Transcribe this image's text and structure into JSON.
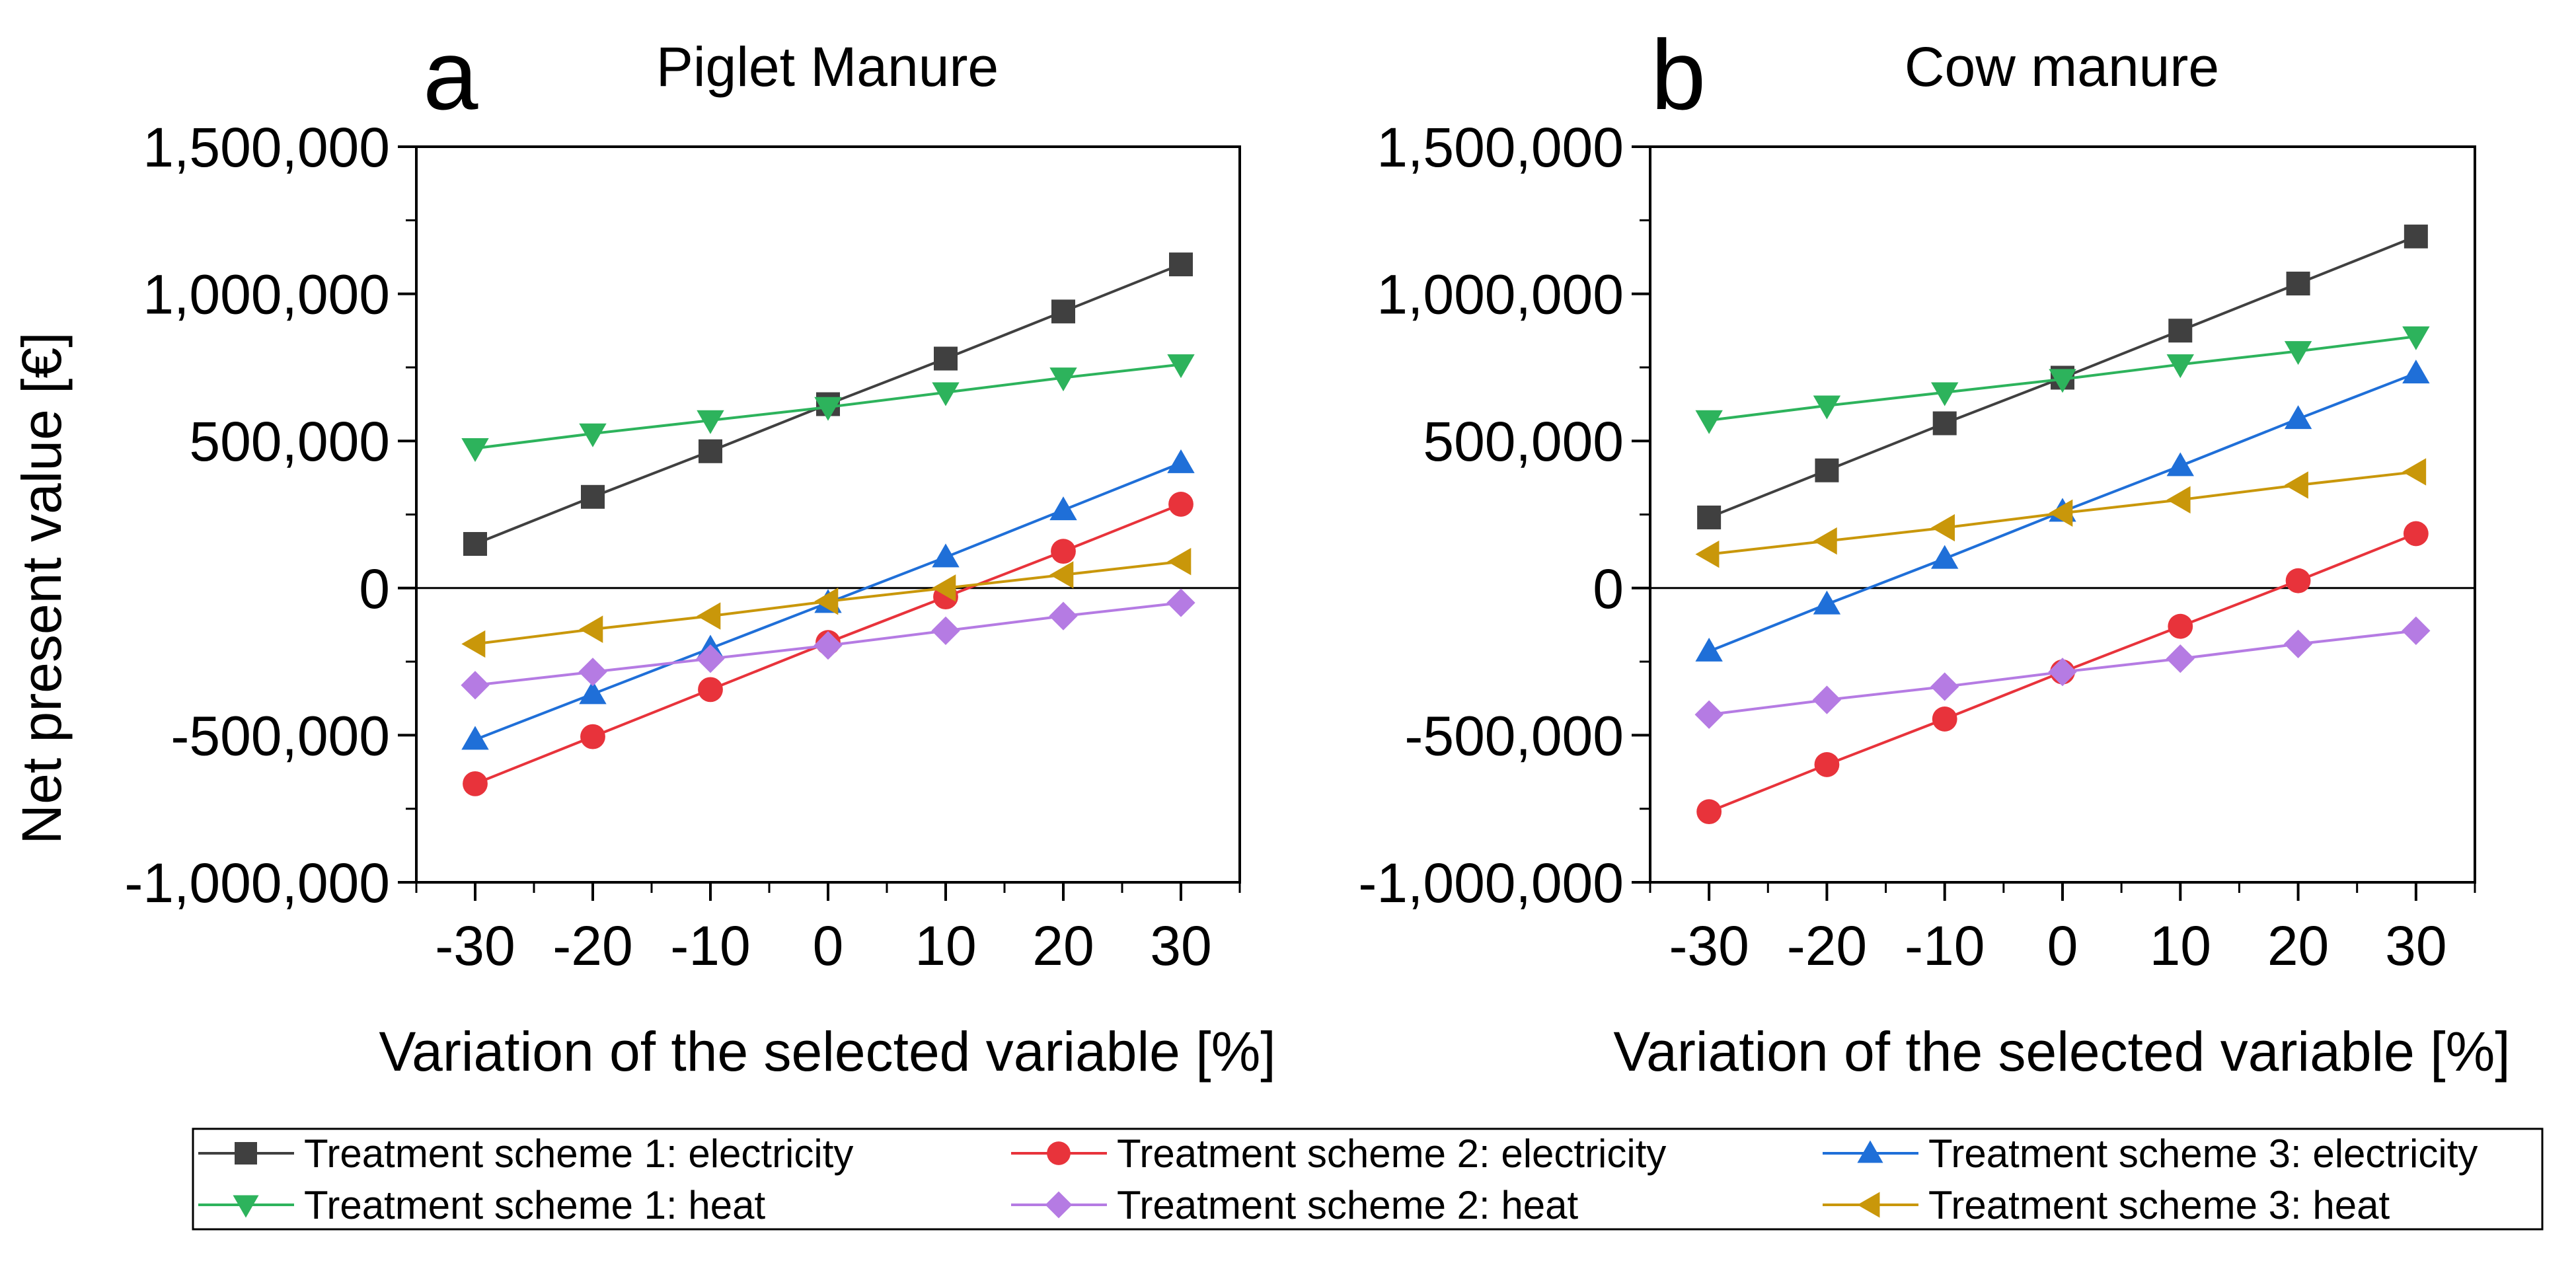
{
  "figure": {
    "ylabel": "Net present value [€]"
  },
  "legend": {
    "entries": [
      {
        "label": "Treatment scheme 1: electricity",
        "marker": "square-icon",
        "color": "#404040"
      },
      {
        "label": "Treatment scheme 2: electricity",
        "marker": "circle-icon",
        "color": "#e8333b"
      },
      {
        "label": "Treatment scheme 3: electricity",
        "marker": "triangle-up-icon",
        "color": "#1f6fd8"
      },
      {
        "label": "Treatment scheme 1: heat",
        "marker": "triangle-down-icon",
        "color": "#2db35c"
      },
      {
        "label": "Treatment scheme 2: heat",
        "marker": "diamond-icon",
        "color": "#b57be3"
      },
      {
        "label": "Treatment scheme 3: heat",
        "marker": "triangle-left-icon",
        "color": "#c9970a"
      }
    ]
  },
  "chart_data": [
    {
      "type": "line",
      "panel": "a",
      "title": "Piglet Manure",
      "xlabel": "Variation of the selected variable [%]",
      "ylabel": "Net present value [€]",
      "x": [
        -30,
        -20,
        -10,
        0,
        10,
        20,
        30
      ],
      "xlim": [
        -35,
        35
      ],
      "ylim": [
        -1000000,
        1500000
      ],
      "xticks": [
        -30,
        -20,
        -10,
        0,
        10,
        20,
        30
      ],
      "xtick_labels": [
        "-30",
        "-20",
        "-10",
        "0",
        "10",
        "20",
        "30"
      ],
      "yticks": [
        -1000000,
        -500000,
        0,
        500000,
        1000000,
        1500000
      ],
      "ytick_labels": [
        "-1,000,000",
        "-500,000",
        "0",
        "500,000",
        "1,000,000",
        "1,500,000"
      ],
      "zero_line": true,
      "series": [
        {
          "name": "Treatment scheme 1: electricity",
          "marker": "square",
          "color": "#404040",
          "values": [
            150000,
            310000,
            465000,
            625000,
            780000,
            940000,
            1100000
          ]
        },
        {
          "name": "Treatment scheme 2: electricity",
          "marker": "circle",
          "color": "#e8333b",
          "values": [
            -665000,
            -505000,
            -345000,
            -185000,
            -30000,
            125000,
            285000
          ]
        },
        {
          "name": "Treatment scheme 3: electricity",
          "marker": "triangle-up",
          "color": "#1f6fd8",
          "values": [
            -515000,
            -360000,
            -205000,
            -50000,
            105000,
            265000,
            425000
          ]
        },
        {
          "name": "Treatment scheme 1: heat",
          "marker": "triangle-down",
          "color": "#2db35c",
          "values": [
            475000,
            525000,
            570000,
            615000,
            665000,
            715000,
            760000
          ]
        },
        {
          "name": "Treatment scheme 2: heat",
          "marker": "diamond",
          "color": "#b57be3",
          "values": [
            -330000,
            -285000,
            -240000,
            -195000,
            -145000,
            -95000,
            -50000
          ]
        },
        {
          "name": "Treatment scheme 3: heat",
          "marker": "triangle-left",
          "color": "#c9970a",
          "values": [
            -190000,
            -140000,
            -95000,
            -45000,
            0,
            45000,
            90000
          ]
        }
      ]
    },
    {
      "type": "line",
      "panel": "b",
      "title": "Cow manure",
      "xlabel": "Variation of the selected variable [%]",
      "ylabel": "Net present value [€]",
      "x": [
        -30,
        -20,
        -10,
        0,
        10,
        20,
        30
      ],
      "xlim": [
        -35,
        35
      ],
      "ylim": [
        -1000000,
        1500000
      ],
      "xticks": [
        -30,
        -20,
        -10,
        0,
        10,
        20,
        30
      ],
      "xtick_labels": [
        "-30",
        "-20",
        "-10",
        "0",
        "10",
        "20",
        "30"
      ],
      "yticks": [
        -1000000,
        -500000,
        0,
        500000,
        1000000,
        1500000
      ],
      "ytick_labels": [
        "-1,000,000",
        "-500,000",
        "0",
        "500,000",
        "1,000,000",
        "1,500,000"
      ],
      "zero_line": true,
      "series": [
        {
          "name": "Treatment scheme 1: electricity",
          "marker": "square",
          "color": "#404040",
          "values": [
            240000,
            400000,
            560000,
            715000,
            875000,
            1035000,
            1195000
          ]
        },
        {
          "name": "Treatment scheme 2: electricity",
          "marker": "circle",
          "color": "#e8333b",
          "values": [
            -760000,
            -600000,
            -445000,
            -285000,
            -130000,
            25000,
            185000
          ]
        },
        {
          "name": "Treatment scheme 3: electricity",
          "marker": "triangle-up",
          "color": "#1f6fd8",
          "values": [
            -215000,
            -55000,
            100000,
            260000,
            415000,
            575000,
            730000
          ]
        },
        {
          "name": "Treatment scheme 1: heat",
          "marker": "triangle-down",
          "color": "#2db35c",
          "values": [
            570000,
            620000,
            665000,
            710000,
            760000,
            805000,
            855000
          ]
        },
        {
          "name": "Treatment scheme 2: heat",
          "marker": "diamond",
          "color": "#b57be3",
          "values": [
            -430000,
            -380000,
            -335000,
            -285000,
            -240000,
            -190000,
            -145000
          ]
        },
        {
          "name": "Treatment scheme 3: heat",
          "marker": "triangle-left",
          "color": "#c9970a",
          "values": [
            115000,
            160000,
            205000,
            255000,
            300000,
            350000,
            395000
          ]
        }
      ]
    }
  ]
}
